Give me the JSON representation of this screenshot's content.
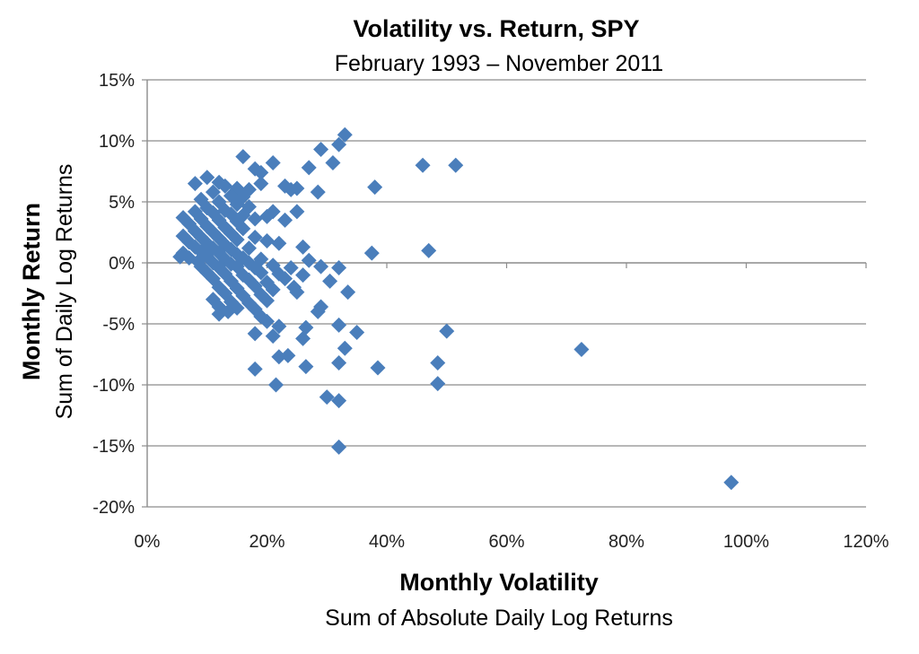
{
  "chart_data": {
    "type": "scatter",
    "title": "Volatility vs. Return, SPY",
    "subtitle": "February 1993 – November 2011",
    "xlabel": "Monthly Volatility",
    "xlabel_sub": "Sum of Absolute Daily Log Returns",
    "ylabel": "Monthly Return",
    "ylabel_sub": "Sum of Daily Log Returns",
    "xlim": [
      0,
      1.2
    ],
    "ylim": [
      -0.2,
      0.15
    ],
    "x_ticks": [
      0,
      0.2,
      0.4,
      0.6,
      0.8,
      1.0,
      1.2
    ],
    "x_tick_labels": [
      "0%",
      "20%",
      "40%",
      "60%",
      "80%",
      "100%",
      "120%"
    ],
    "y_ticks": [
      0.15,
      0.1,
      0.05,
      0,
      -0.05,
      -0.1,
      -0.15,
      -0.2
    ],
    "y_tick_labels": [
      "15%",
      "10%",
      "5%",
      "0%",
      "-5%",
      "-10%",
      "-15%",
      "-20%"
    ],
    "grid": "horizontal",
    "legend": "none",
    "marker_color": "#4a7ebb",
    "points": [
      [
        0.33,
        0.105
      ],
      [
        0.32,
        0.097
      ],
      [
        0.29,
        0.093
      ],
      [
        0.31,
        0.082
      ],
      [
        0.16,
        0.087
      ],
      [
        0.18,
        0.077
      ],
      [
        0.19,
        0.074
      ],
      [
        0.21,
        0.082
      ],
      [
        0.27,
        0.078
      ],
      [
        0.46,
        0.08
      ],
      [
        0.515,
        0.08
      ],
      [
        0.1,
        0.07
      ],
      [
        0.08,
        0.065
      ],
      [
        0.12,
        0.066
      ],
      [
        0.13,
        0.063
      ],
      [
        0.15,
        0.061
      ],
      [
        0.17,
        0.06
      ],
      [
        0.19,
        0.065
      ],
      [
        0.23,
        0.063
      ],
      [
        0.25,
        0.061
      ],
      [
        0.24,
        0.06
      ],
      [
        0.285,
        0.058
      ],
      [
        0.38,
        0.062
      ],
      [
        0.11,
        0.058
      ],
      [
        0.14,
        0.055
      ],
      [
        0.16,
        0.054
      ],
      [
        0.09,
        0.052
      ],
      [
        0.12,
        0.05
      ],
      [
        0.15,
        0.048
      ],
      [
        0.17,
        0.046
      ],
      [
        0.1,
        0.045
      ],
      [
        0.13,
        0.043
      ],
      [
        0.08,
        0.042
      ],
      [
        0.11,
        0.041
      ],
      [
        0.14,
        0.04
      ],
      [
        0.16,
        0.039
      ],
      [
        0.21,
        0.042
      ],
      [
        0.25,
        0.042
      ],
      [
        0.06,
        0.037
      ],
      [
        0.09,
        0.036
      ],
      [
        0.12,
        0.035
      ],
      [
        0.15,
        0.034
      ],
      [
        0.18,
        0.036
      ],
      [
        0.2,
        0.038
      ],
      [
        0.23,
        0.035
      ],
      [
        0.07,
        0.032
      ],
      [
        0.1,
        0.03
      ],
      [
        0.13,
        0.029
      ],
      [
        0.16,
        0.028
      ],
      [
        0.08,
        0.026
      ],
      [
        0.11,
        0.025
      ],
      [
        0.14,
        0.024
      ],
      [
        0.06,
        0.022
      ],
      [
        0.09,
        0.021
      ],
      [
        0.12,
        0.02
      ],
      [
        0.15,
        0.019
      ],
      [
        0.18,
        0.021
      ],
      [
        0.2,
        0.018
      ],
      [
        0.07,
        0.017
      ],
      [
        0.1,
        0.016
      ],
      [
        0.13,
        0.015
      ],
      [
        0.22,
        0.016
      ],
      [
        0.08,
        0.013
      ],
      [
        0.11,
        0.012
      ],
      [
        0.14,
        0.011
      ],
      [
        0.17,
        0.012
      ],
      [
        0.26,
        0.013
      ],
      [
        0.06,
        0.008
      ],
      [
        0.09,
        0.009
      ],
      [
        0.12,
        0.008
      ],
      [
        0.15,
        0.007
      ],
      [
        0.375,
        0.008
      ],
      [
        0.47,
        0.01
      ],
      [
        0.07,
        0.004
      ],
      [
        0.1,
        0.005
      ],
      [
        0.13,
        0.003
      ],
      [
        0.16,
        0.004
      ],
      [
        0.19,
        0.003
      ],
      [
        0.055,
        0.005
      ],
      [
        0.085,
        0.001
      ],
      [
        0.11,
        0.0
      ],
      [
        0.14,
        -0.001
      ],
      [
        0.17,
        0.0
      ],
      [
        0.27,
        0.002
      ],
      [
        0.09,
        -0.003
      ],
      [
        0.12,
        -0.004
      ],
      [
        0.15,
        -0.003
      ],
      [
        0.18,
        -0.004
      ],
      [
        0.21,
        -0.002
      ],
      [
        0.24,
        -0.004
      ],
      [
        0.29,
        -0.003
      ],
      [
        0.32,
        -0.004
      ],
      [
        0.1,
        -0.008
      ],
      [
        0.13,
        -0.009
      ],
      [
        0.16,
        -0.01
      ],
      [
        0.19,
        -0.008
      ],
      [
        0.22,
        -0.009
      ],
      [
        0.26,
        -0.01
      ],
      [
        0.11,
        -0.013
      ],
      [
        0.14,
        -0.015
      ],
      [
        0.17,
        -0.014
      ],
      [
        0.2,
        -0.016
      ],
      [
        0.23,
        -0.013
      ],
      [
        0.305,
        -0.015
      ],
      [
        0.12,
        -0.02
      ],
      [
        0.15,
        -0.021
      ],
      [
        0.18,
        -0.019
      ],
      [
        0.21,
        -0.022
      ],
      [
        0.245,
        -0.02
      ],
      [
        0.13,
        -0.025
      ],
      [
        0.16,
        -0.027
      ],
      [
        0.19,
        -0.026
      ],
      [
        0.25,
        -0.024
      ],
      [
        0.335,
        -0.024
      ],
      [
        0.11,
        -0.03
      ],
      [
        0.14,
        -0.032
      ],
      [
        0.17,
        -0.033
      ],
      [
        0.2,
        -0.031
      ],
      [
        0.12,
        -0.036
      ],
      [
        0.15,
        -0.037
      ],
      [
        0.18,
        -0.038
      ],
      [
        0.12,
        -0.042
      ],
      [
        0.135,
        -0.04
      ],
      [
        0.19,
        -0.044
      ],
      [
        0.285,
        -0.04
      ],
      [
        0.29,
        -0.036
      ],
      [
        0.2,
        -0.048
      ],
      [
        0.22,
        -0.052
      ],
      [
        0.265,
        -0.053
      ],
      [
        0.32,
        -0.051
      ],
      [
        0.18,
        -0.058
      ],
      [
        0.21,
        -0.06
      ],
      [
        0.26,
        -0.062
      ],
      [
        0.35,
        -0.057
      ],
      [
        0.5,
        -0.056
      ],
      [
        0.33,
        -0.07
      ],
      [
        0.725,
        -0.071
      ],
      [
        0.22,
        -0.077
      ],
      [
        0.235,
        -0.076
      ],
      [
        0.32,
        -0.082
      ],
      [
        0.18,
        -0.087
      ],
      [
        0.265,
        -0.085
      ],
      [
        0.385,
        -0.086
      ],
      [
        0.485,
        -0.082
      ],
      [
        0.215,
        -0.1
      ],
      [
        0.485,
        -0.099
      ],
      [
        0.3,
        -0.11
      ],
      [
        0.32,
        -0.113
      ],
      [
        0.32,
        -0.151
      ],
      [
        0.975,
        -0.18
      ]
    ]
  }
}
